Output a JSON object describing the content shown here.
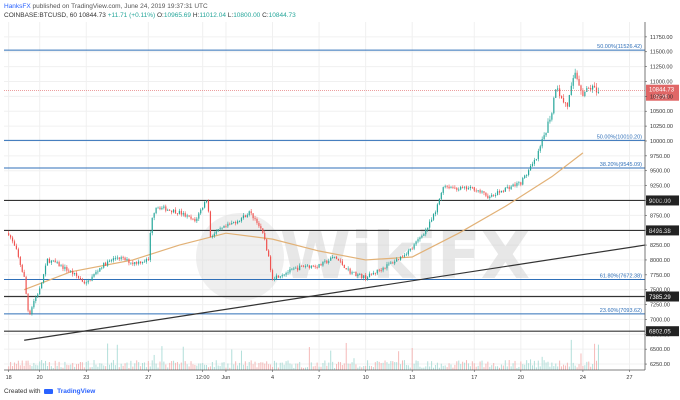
{
  "header": {
    "author": "HanksFX",
    "published": "published on TradingView.com, June 24, 2019 19:37:31 UTC",
    "symbol": "COINBASE:BTCUSD, 60",
    "price": "10844.73",
    "change": "+11.71 (+0.11%)",
    "ohlc": {
      "o_label": "O:",
      "o": "10965.69",
      "h_label": "H:",
      "h": "11012.04",
      "l_label": "L:",
      "l": "10800.00",
      "c_label": "C:",
      "c": "10844.73"
    }
  },
  "footer": {
    "created_with": "Created with",
    "brand": "TradingView"
  },
  "watermark": {
    "text": "WikiFX"
  },
  "colors": {
    "up": "#26a69a",
    "down": "#ef5350",
    "ma": "#e2b176",
    "fib": "#2f6fb8",
    "support": "#333333",
    "trend": "#333333",
    "price_line": "#e06666"
  },
  "chart_data": {
    "type": "candlestick",
    "title": "",
    "ylim": [
      6150,
      12000
    ],
    "y_ticks": [
      6250,
      6500,
      6750,
      7000,
      7250,
      7500,
      7750,
      8000,
      8250,
      8500,
      8750,
      9000,
      9250,
      9500,
      9750,
      10000,
      10250,
      10500,
      10750,
      11000,
      11250,
      11500,
      11750
    ],
    "x_ticks": [
      {
        "label": "18",
        "day": 0
      },
      {
        "label": "20",
        "day": 2
      },
      {
        "label": "23",
        "day": 5
      },
      {
        "label": "27",
        "day": 9
      },
      {
        "label": "12:00",
        "day": 12.5
      },
      {
        "label": "Jun",
        "day": 14
      },
      {
        "label": "4",
        "day": 17
      },
      {
        "label": "7",
        "day": 20
      },
      {
        "label": "10",
        "day": 23
      },
      {
        "label": "13",
        "day": 26
      },
      {
        "label": "17",
        "day": 30
      },
      {
        "label": "20",
        "day": 33
      },
      {
        "label": "24",
        "day": 37
      },
      {
        "label": "27",
        "day": 40
      }
    ],
    "x_range_days": [
      -0.3,
      41
    ],
    "horizontal_levels": [
      {
        "value": 11526.42,
        "label": "50.00%(11526.42)",
        "style": "fib"
      },
      {
        "value": 10010.2,
        "label": "50.00%(10010.20)",
        "style": "fib"
      },
      {
        "value": 9545.09,
        "label": "38.20%(9545.09)",
        "style": "fib"
      },
      {
        "value": 9000.0,
        "label": "9000.00",
        "style": "support"
      },
      {
        "value": 8496.38,
        "label": "8496.38",
        "style": "support"
      },
      {
        "value": 7672.38,
        "label": "61.80%(7672.38)",
        "style": "fib"
      },
      {
        "value": 7385.29,
        "label": "7385.29",
        "style": "support"
      },
      {
        "value": 7093.62,
        "label": "23.60%(7093.62)",
        "style": "fib"
      },
      {
        "value": 6802.05,
        "label": "6802.05",
        "style": "support"
      }
    ],
    "trendline": {
      "from": {
        "day": 1,
        "value": 6650
      },
      "to": {
        "day": 41,
        "value": 8250
      }
    },
    "last_price": {
      "value": 10844.73,
      "label": "10844.73",
      "countdown": "22:29"
    },
    "price_path": [
      {
        "day": 0,
        "value": 8450
      },
      {
        "day": 0.5,
        "value": 8150
      },
      {
        "day": 1,
        "value": 7700
      },
      {
        "day": 1.3,
        "value": 7050
      },
      {
        "day": 1.6,
        "value": 7300
      },
      {
        "day": 2,
        "value": 7500
      },
      {
        "day": 2.5,
        "value": 8000
      },
      {
        "day": 3,
        "value": 7950
      },
      {
        "day": 4,
        "value": 7800
      },
      {
        "day": 5,
        "value": 7600
      },
      {
        "day": 6,
        "value": 7900
      },
      {
        "day": 7,
        "value": 8050
      },
      {
        "day": 8,
        "value": 7950
      },
      {
        "day": 9,
        "value": 8000
      },
      {
        "day": 9.2,
        "value": 8700
      },
      {
        "day": 9.5,
        "value": 8900
      },
      {
        "day": 11,
        "value": 8800
      },
      {
        "day": 12,
        "value": 8650
      },
      {
        "day": 12.8,
        "value": 9050
      },
      {
        "day": 13,
        "value": 8400
      },
      {
        "day": 13.6,
        "value": 8500
      },
      {
        "day": 15,
        "value": 8700
      },
      {
        "day": 15.5,
        "value": 8800
      },
      {
        "day": 16,
        "value": 8650
      },
      {
        "day": 16.5,
        "value": 8350
      },
      {
        "day": 17,
        "value": 7700
      },
      {
        "day": 18,
        "value": 7800
      },
      {
        "day": 19,
        "value": 7900
      },
      {
        "day": 20,
        "value": 7900
      },
      {
        "day": 21,
        "value": 8050
      },
      {
        "day": 22,
        "value": 7800
      },
      {
        "day": 23,
        "value": 7700
      },
      {
        "day": 24,
        "value": 7850
      },
      {
        "day": 25,
        "value": 8000
      },
      {
        "day": 26,
        "value": 8200
      },
      {
        "day": 27,
        "value": 8550
      },
      {
        "day": 27.5,
        "value": 8800
      },
      {
        "day": 28,
        "value": 9250
      },
      {
        "day": 29,
        "value": 9200
      },
      {
        "day": 30,
        "value": 9200
      },
      {
        "day": 31,
        "value": 9050
      },
      {
        "day": 32,
        "value": 9200
      },
      {
        "day": 33,
        "value": 9300
      },
      {
        "day": 34,
        "value": 9700
      },
      {
        "day": 35,
        "value": 10500
      },
      {
        "day": 35.3,
        "value": 11000
      },
      {
        "day": 35.6,
        "value": 10700
      },
      {
        "day": 36,
        "value": 10600
      },
      {
        "day": 36.5,
        "value": 11150
      },
      {
        "day": 37,
        "value": 10800
      },
      {
        "day": 37.5,
        "value": 10900
      },
      {
        "day": 38,
        "value": 10844.73
      }
    ],
    "moving_average": [
      {
        "day": 1,
        "value": 7500
      },
      {
        "day": 4,
        "value": 7800
      },
      {
        "day": 8,
        "value": 8000
      },
      {
        "day": 11,
        "value": 8250
      },
      {
        "day": 14,
        "value": 8450
      },
      {
        "day": 17,
        "value": 8350
      },
      {
        "day": 20,
        "value": 8150
      },
      {
        "day": 23,
        "value": 8000
      },
      {
        "day": 26,
        "value": 8050
      },
      {
        "day": 29,
        "value": 8450
      },
      {
        "day": 32,
        "value": 8900
      },
      {
        "day": 35,
        "value": 9400
      },
      {
        "day": 37,
        "value": 9800
      }
    ]
  }
}
